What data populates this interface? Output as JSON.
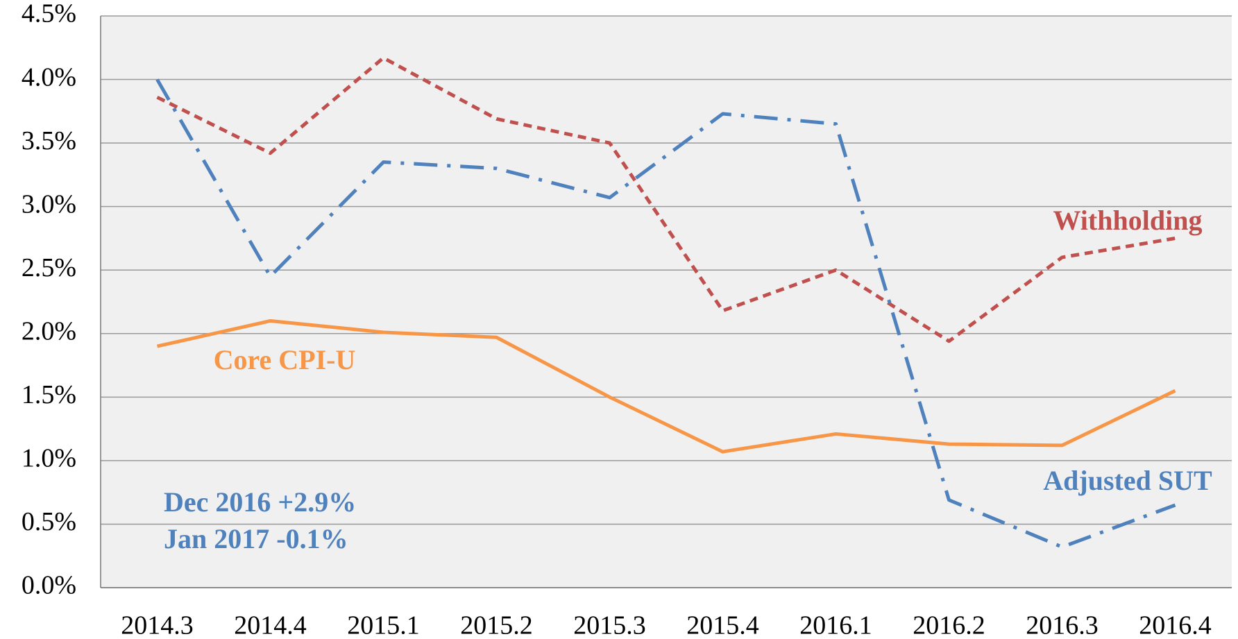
{
  "chart_data": {
    "type": "line",
    "categories": [
      "2014.3",
      "2014.4",
      "2015.1",
      "2015.2",
      "2015.3",
      "2015.4",
      "2016.1",
      "2016.2",
      "2016.3",
      "2016.4"
    ],
    "series": [
      {
        "name": "Withholding",
        "color": "#c0504d",
        "values": [
          3.86,
          3.42,
          4.17,
          3.69,
          3.5,
          2.18,
          2.5,
          1.94,
          2.6,
          2.75
        ]
      },
      {
        "name": "Core CPI-U",
        "color": "#f79646",
        "values": [
          1.9,
          2.1,
          2.01,
          1.97,
          1.5,
          1.07,
          1.21,
          1.13,
          1.12,
          1.55
        ]
      },
      {
        "name": "Adjusted SUT",
        "color": "#4f81bd",
        "values": [
          4.0,
          2.45,
          3.35,
          3.3,
          3.07,
          3.73,
          3.65,
          0.69,
          0.32,
          0.65
        ]
      }
    ],
    "annotations": [
      "Dec 2016 +2.9%",
      "Jan 2017 -0.1%"
    ],
    "ylim": [
      0,
      4.5
    ],
    "yticks": [
      {
        "value": 0,
        "label": "0.0%"
      },
      {
        "value": 0.5,
        "label": "0.5%"
      },
      {
        "value": 1,
        "label": "1.0%"
      },
      {
        "value": 1.5,
        "label": "1.5%"
      },
      {
        "value": 2,
        "label": "2.0%"
      },
      {
        "value": 2.5,
        "label": "2.5%"
      },
      {
        "value": 3,
        "label": "3.0%"
      },
      {
        "value": 3.5,
        "label": "3.5%"
      },
      {
        "value": 4,
        "label": "4.0%"
      },
      {
        "value": 4.5,
        "label": "4.5%"
      }
    ],
    "grid": true
  }
}
